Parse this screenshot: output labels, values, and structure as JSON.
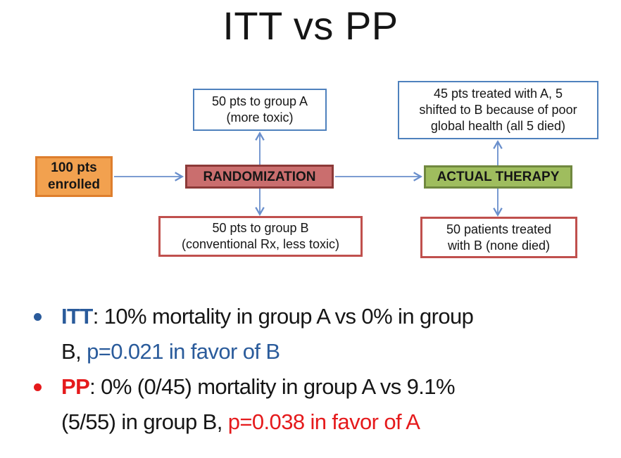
{
  "title": "ITT vs PP",
  "colors": {
    "accent_blue_text": "#2a5b9b",
    "accent_red_text": "#e51a1c",
    "arrow": "#6a8fcc",
    "box_blue_border": "#4f81bd",
    "box_red_border": "#c0504d",
    "orange_fill": "#f2a14f",
    "orange_border": "#de7e2d",
    "rose_fill": "#ca6e6e",
    "rose_border": "#8c3a38",
    "green_fill": "#9fbd5e",
    "green_border": "#70883f"
  },
  "nodes": {
    "enrolled": {
      "label": "100 pts\nenrolled"
    },
    "randomization": {
      "label": "RANDOMIZATION"
    },
    "actual_therapy": {
      "label": "ACTUAL THERAPY"
    },
    "group_a": {
      "label": "50 pts to group A\n(more toxic)"
    },
    "group_b": {
      "label": "50 pts to group B\n(conventional Rx, less toxic)"
    },
    "outcome_a": {
      "label": "45 pts treated with A, 5\nshifted to B because of poor\nglobal health (all 5 died)"
    },
    "outcome_b": {
      "label": "50 patients treated\nwith B (none died)"
    }
  },
  "bullets": [
    {
      "dot_color": "#2a5b9b",
      "segments": [
        {
          "text": "ITT",
          "style": "blue-bold"
        },
        {
          "text": ": 10% mortality in group A vs 0% in group\nB, ",
          "style": "black"
        },
        {
          "text": "p=0.021 in favor of B",
          "style": "blue"
        }
      ]
    },
    {
      "dot_color": "#e51a1c",
      "segments": [
        {
          "text": "PP",
          "style": "red-bold"
        },
        {
          "text": ": 0% (0/45) mortality in group A vs 9.1%\n(5/55) in group B, ",
          "style": "black"
        },
        {
          "text": "p=0.038 in favor of A",
          "style": "red"
        }
      ]
    }
  ]
}
